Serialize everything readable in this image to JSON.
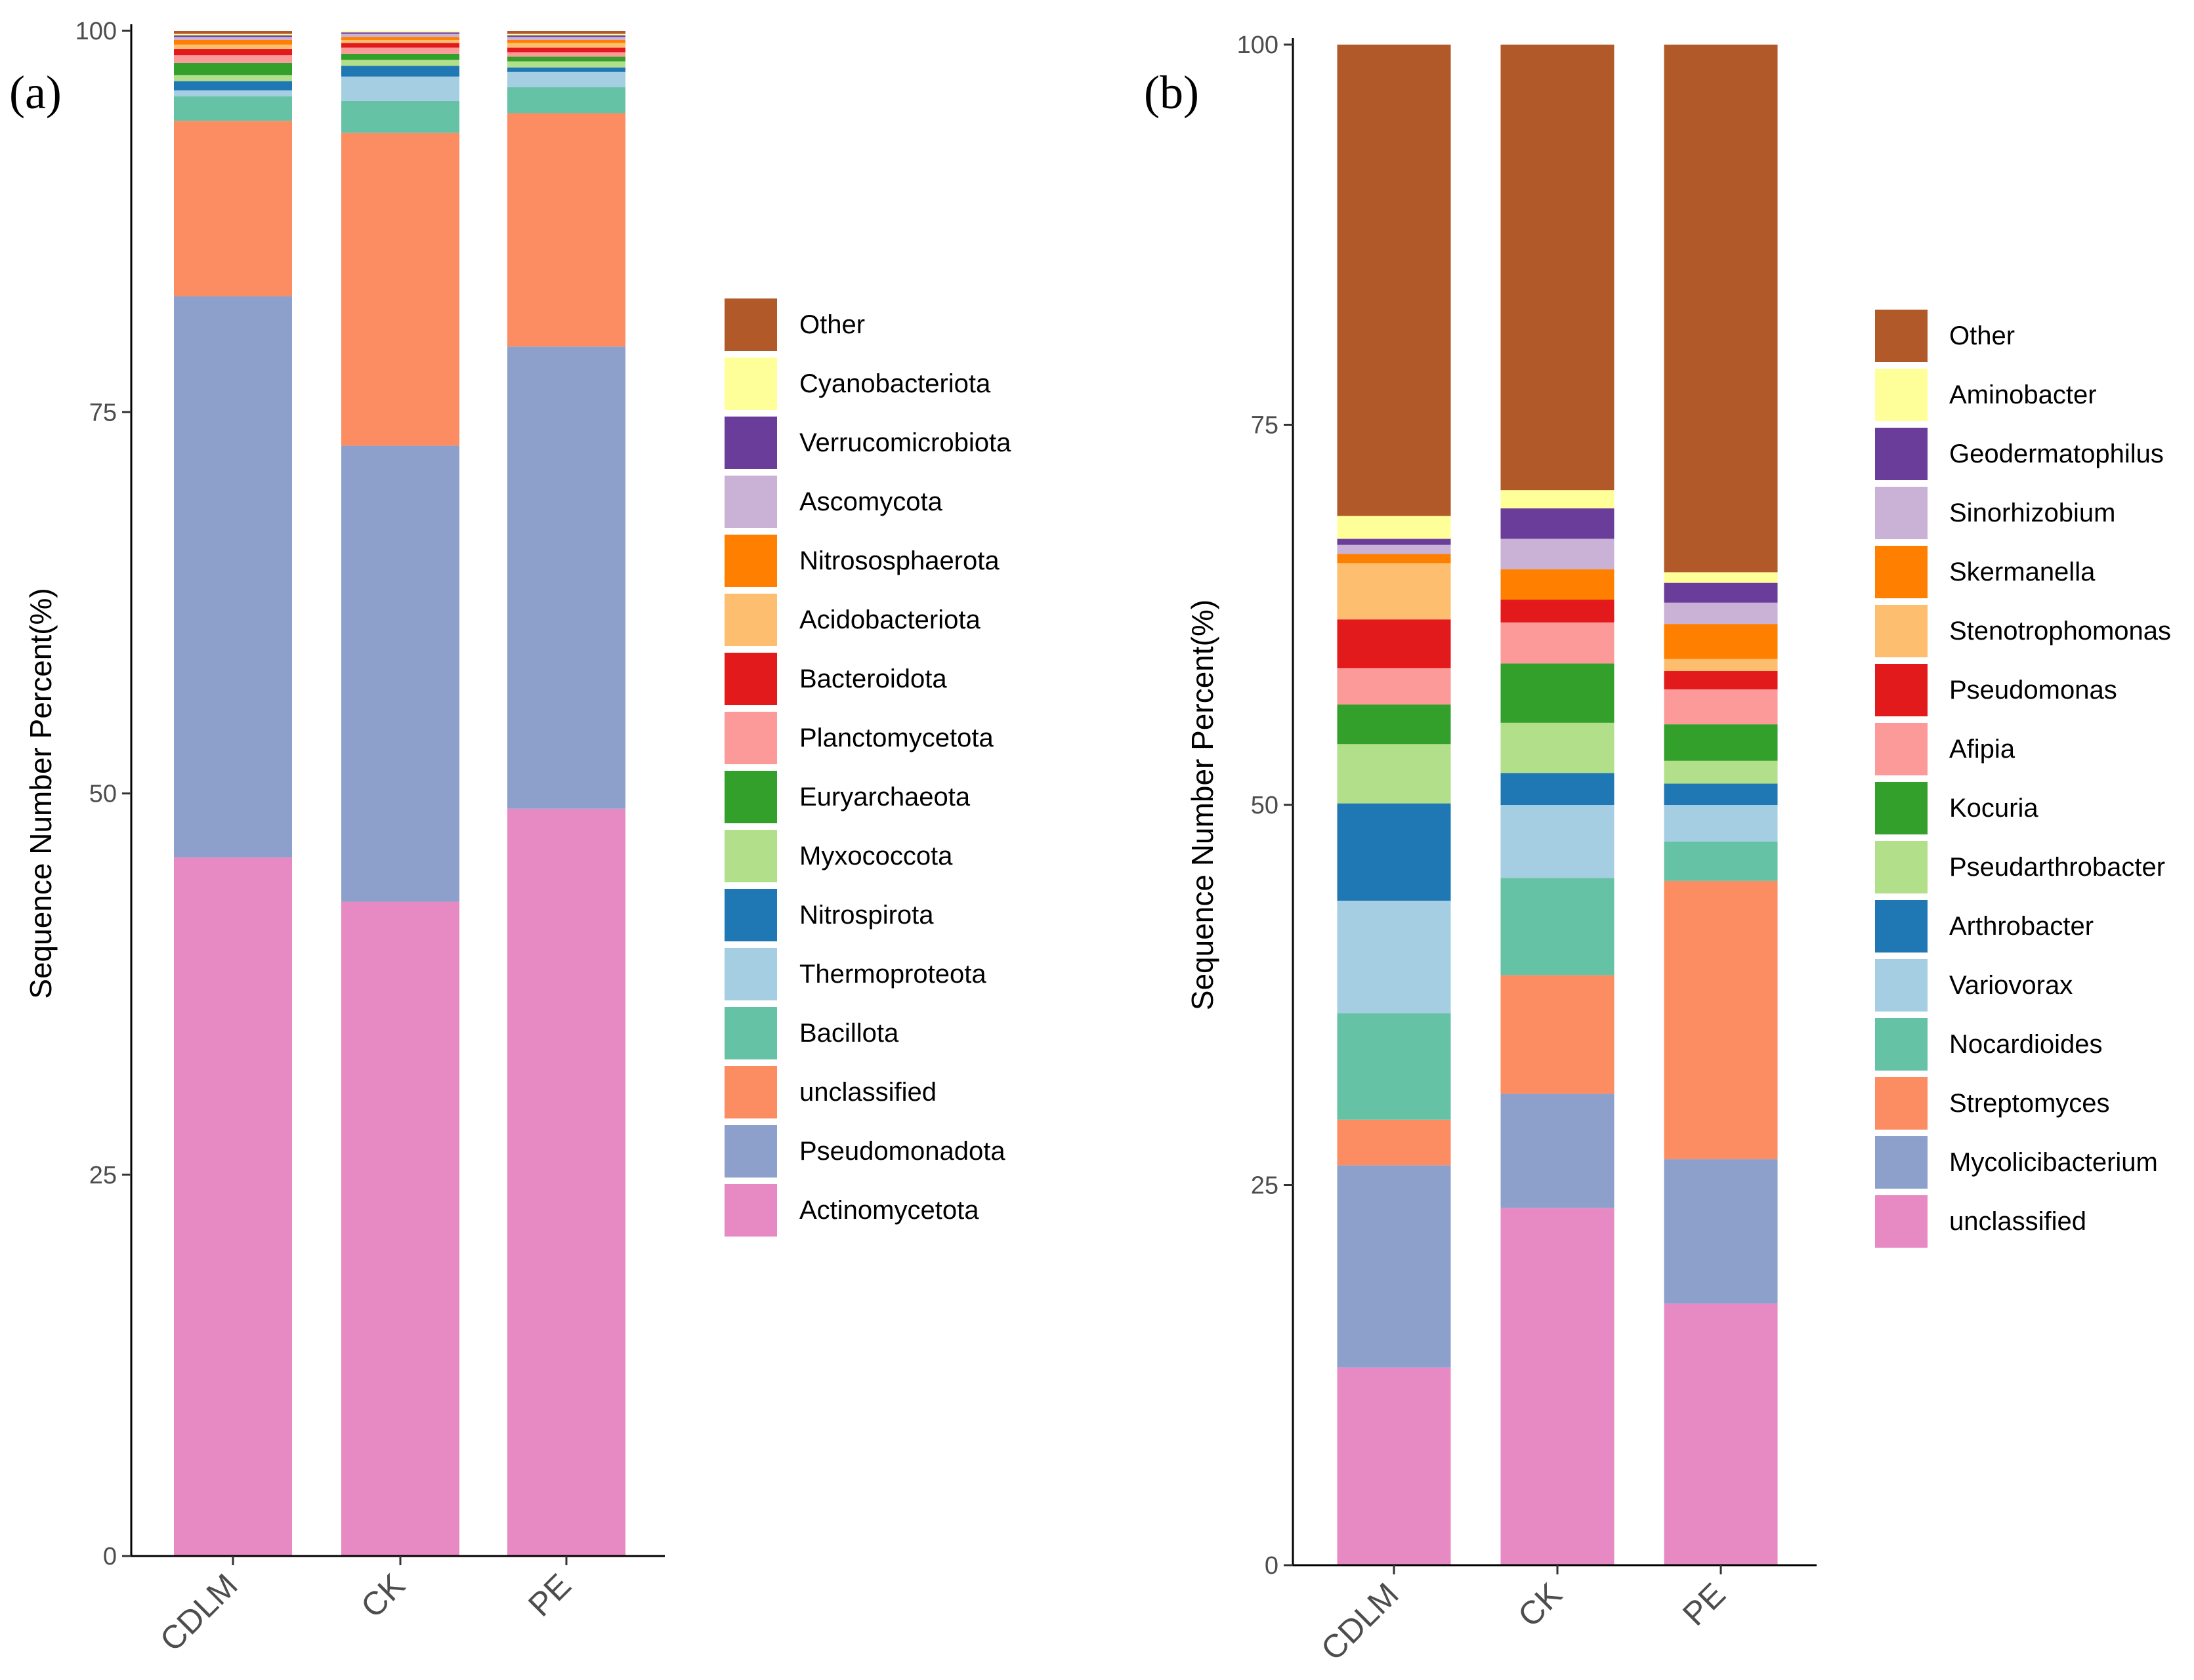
{
  "chart_data": [
    {
      "panel_label": "(a)",
      "type": "bar",
      "stacked": true,
      "ylabel": "Sequence Number Percent(%)",
      "ylim": [
        0,
        100
      ],
      "yticks": [
        0,
        25,
        50,
        75,
        100
      ],
      "categories": [
        "CDLM",
        "CK",
        "PE"
      ],
      "legend_position": "right",
      "legend": [
        "Other",
        "Cyanobacteriota",
        "Verrucomicrobiota",
        "Ascomycota",
        "Nitrososphaerota",
        "Acidobacteriota",
        "Bacteroidota",
        "Planctomycetota",
        "Euryarchaeota",
        "Myxococcota",
        "Nitrospirota",
        "Thermoproteota",
        "Bacillota",
        "unclassified",
        "Pseudomonadota",
        "Actinomycetota"
      ],
      "series": [
        {
          "name": "Actinomycetota",
          "color": "#E78AC3",
          "values": [
            45.8,
            42.9,
            49.0
          ]
        },
        {
          "name": "Pseudomonadota",
          "color": "#8DA0CB",
          "values": [
            36.8,
            29.9,
            30.3
          ]
        },
        {
          "name": "unclassified",
          "color": "#FC8D62",
          "values": [
            11.5,
            20.5,
            15.3
          ]
        },
        {
          "name": "Bacillota",
          "color": "#66C2A5",
          "values": [
            1.6,
            2.1,
            1.7
          ]
        },
        {
          "name": "Thermoproteota",
          "color": "#A6CEE3",
          "values": [
            0.4,
            1.6,
            1.0
          ]
        },
        {
          "name": "Nitrospirota",
          "color": "#1F78B4",
          "values": [
            0.6,
            0.7,
            0.3
          ]
        },
        {
          "name": "Myxococcota",
          "color": "#B2DF8A",
          "values": [
            0.4,
            0.4,
            0.4
          ]
        },
        {
          "name": "Euryarchaeota",
          "color": "#33A02C",
          "values": [
            0.8,
            0.4,
            0.3
          ]
        },
        {
          "name": "Planctomycetota",
          "color": "#FB9A99",
          "values": [
            0.5,
            0.4,
            0.3
          ]
        },
        {
          "name": "Bacteroidota",
          "color": "#E31A1C",
          "values": [
            0.4,
            0.3,
            0.3
          ]
        },
        {
          "name": "Acidobacteriota",
          "color": "#FDBF6F",
          "values": [
            0.3,
            0.2,
            0.3
          ]
        },
        {
          "name": "Nitrososphaerota",
          "color": "#FF7F00",
          "values": [
            0.3,
            0.2,
            0.2
          ]
        },
        {
          "name": "Ascomycota",
          "color": "#CAB2D6",
          "values": [
            0.2,
            0.2,
            0.2
          ]
        },
        {
          "name": "Verrucomicrobiota",
          "color": "#6A3D9A",
          "values": [
            0.1,
            0.1,
            0.1
          ]
        },
        {
          "name": "Cyanobacteriota",
          "color": "#FFFF99",
          "values": [
            0.1,
            0.1,
            0.1
          ]
        },
        {
          "name": "Other",
          "color": "#B15928",
          "values": [
            0.2,
            0.0,
            0.2
          ]
        }
      ]
    },
    {
      "panel_label": "(b)",
      "type": "bar",
      "stacked": true,
      "ylabel": "Sequence Number Percent(%)",
      "ylim": [
        0,
        100
      ],
      "yticks": [
        0,
        25,
        50,
        75,
        100
      ],
      "categories": [
        "CDLM",
        "CK",
        "PE"
      ],
      "legend_position": "right",
      "legend": [
        "Other",
        "Aminobacter",
        "Geodermatophilus",
        "Sinorhizobium",
        "Skermanella",
        "Stenotrophomonas",
        "Pseudomonas",
        "Afipia",
        "Kocuria",
        "Pseudarthrobacter",
        "Arthrobacter",
        "Variovorax",
        "Nocardioides",
        "Streptomyces",
        "Mycolicibacterium",
        "unclassified"
      ],
      "series": [
        {
          "name": "unclassified",
          "color": "#E78AC3",
          "values": [
            13.0,
            23.5,
            17.2
          ]
        },
        {
          "name": "Mycolicibacterium",
          "color": "#8DA0CB",
          "values": [
            13.3,
            7.5,
            9.5
          ]
        },
        {
          "name": "Streptomyces",
          "color": "#FC8D62",
          "values": [
            3.0,
            7.8,
            18.3
          ]
        },
        {
          "name": "Nocardioides",
          "color": "#66C2A5",
          "values": [
            7.0,
            6.4,
            2.6
          ]
        },
        {
          "name": "Variovorax",
          "color": "#A6CEE3",
          "values": [
            7.4,
            4.8,
            2.4
          ]
        },
        {
          "name": "Arthrobacter",
          "color": "#1F78B4",
          "values": [
            6.4,
            2.1,
            1.4
          ]
        },
        {
          "name": "Pseudarthrobacter",
          "color": "#B2DF8A",
          "values": [
            3.9,
            3.3,
            1.5
          ]
        },
        {
          "name": "Kocuria",
          "color": "#33A02C",
          "values": [
            2.6,
            3.9,
            2.4
          ]
        },
        {
          "name": "Afipia",
          "color": "#FB9A99",
          "values": [
            2.4,
            2.7,
            2.3
          ]
        },
        {
          "name": "Pseudomonas",
          "color": "#E31A1C",
          "values": [
            3.2,
            1.5,
            1.2
          ]
        },
        {
          "name": "Stenotrophomonas",
          "color": "#FDBF6F",
          "values": [
            3.7,
            0.0,
            0.8
          ]
        },
        {
          "name": "Skermanella",
          "color": "#FF7F00",
          "values": [
            0.6,
            2.0,
            2.3
          ]
        },
        {
          "name": "Sinorhizobium",
          "color": "#CAB2D6",
          "values": [
            0.6,
            2.0,
            1.4
          ]
        },
        {
          "name": "Geodermatophilus",
          "color": "#6A3D9A",
          "values": [
            0.4,
            2.0,
            1.3
          ]
        },
        {
          "name": "Aminobacter",
          "color": "#FFFF99",
          "values": [
            1.5,
            1.2,
            0.7
          ]
        },
        {
          "name": "Other",
          "color": "#B15928",
          "values": [
            31.0,
            29.3,
            34.7
          ]
        }
      ]
    }
  ]
}
